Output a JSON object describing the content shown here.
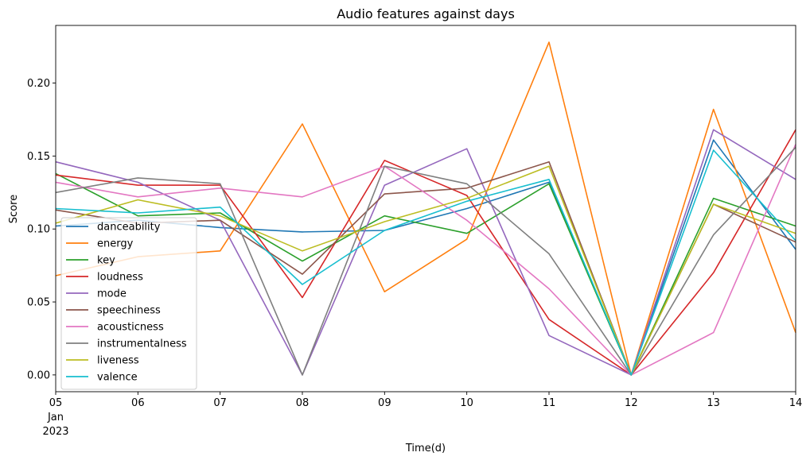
{
  "chart_data": {
    "type": "line",
    "title": "Audio features against days",
    "xlabel": "Time(d)",
    "ylabel": "Score",
    "x": [
      "2023-01-05",
      "2023-01-06",
      "2023-01-07",
      "2023-01-08",
      "2023-01-09",
      "2023-01-10",
      "2023-01-11",
      "2023-01-12",
      "2023-01-13",
      "2023-01-14"
    ],
    "x_tick_labels": [
      "05",
      "06",
      "07",
      "08",
      "09",
      "10",
      "11",
      "12",
      "13",
      "14"
    ],
    "x_tick_sublabel_month": "Jan",
    "x_tick_sublabel_year": "2023",
    "y_ticks": [
      0.0,
      0.05,
      0.1,
      0.15,
      0.2
    ],
    "y_tick_labels": [
      "0.00",
      "0.05",
      "0.10",
      "0.15",
      "0.20"
    ],
    "ylim": [
      -0.0115,
      0.2395
    ],
    "grid": false,
    "legend_position": "lower-left",
    "series": [
      {
        "name": "danceability",
        "color": "#1f77b4",
        "values": [
          0.102,
          0.106,
          0.101,
          0.098,
          0.099,
          0.114,
          0.132,
          0.0,
          0.161,
          0.086
        ]
      },
      {
        "name": "energy",
        "color": "#ff7f0e",
        "values": [
          0.068,
          0.081,
          0.085,
          0.172,
          0.057,
          0.093,
          0.228,
          0.0,
          0.182,
          0.029
        ]
      },
      {
        "name": "key",
        "color": "#2ca02c",
        "values": [
          0.138,
          0.109,
          0.111,
          0.078,
          0.109,
          0.097,
          0.131,
          0.0,
          0.121,
          0.102
        ]
      },
      {
        "name": "loudness",
        "color": "#d62728",
        "values": [
          0.137,
          0.13,
          0.13,
          0.053,
          0.147,
          0.123,
          0.038,
          0.0,
          0.07,
          0.168
        ]
      },
      {
        "name": "mode",
        "color": "#9467bd",
        "values": [
          0.146,
          0.132,
          0.106,
          0.0,
          0.13,
          0.155,
          0.027,
          0.0,
          0.168,
          0.134
        ]
      },
      {
        "name": "speechiness",
        "color": "#8c564b",
        "values": [
          0.113,
          0.104,
          0.106,
          0.069,
          0.124,
          0.128,
          0.146,
          0.0,
          0.117,
          0.091
        ]
      },
      {
        "name": "acousticness",
        "color": "#e377c2",
        "values": [
          0.132,
          0.122,
          0.128,
          0.122,
          0.143,
          0.106,
          0.059,
          0.0,
          0.029,
          0.158
        ]
      },
      {
        "name": "instrumentalness",
        "color": "#7f7f7f",
        "values": [
          0.125,
          0.135,
          0.131,
          0.0,
          0.143,
          0.131,
          0.083,
          0.0,
          0.096,
          0.156
        ]
      },
      {
        "name": "liveness",
        "color": "#bcbd22",
        "values": [
          0.104,
          0.12,
          0.109,
          0.085,
          0.105,
          0.121,
          0.143,
          0.0,
          0.117,
          0.097
        ]
      },
      {
        "name": "valence",
        "color": "#17becf",
        "values": [
          0.114,
          0.111,
          0.115,
          0.062,
          0.099,
          0.119,
          0.134,
          0.0,
          0.154,
          0.092
        ]
      }
    ]
  }
}
